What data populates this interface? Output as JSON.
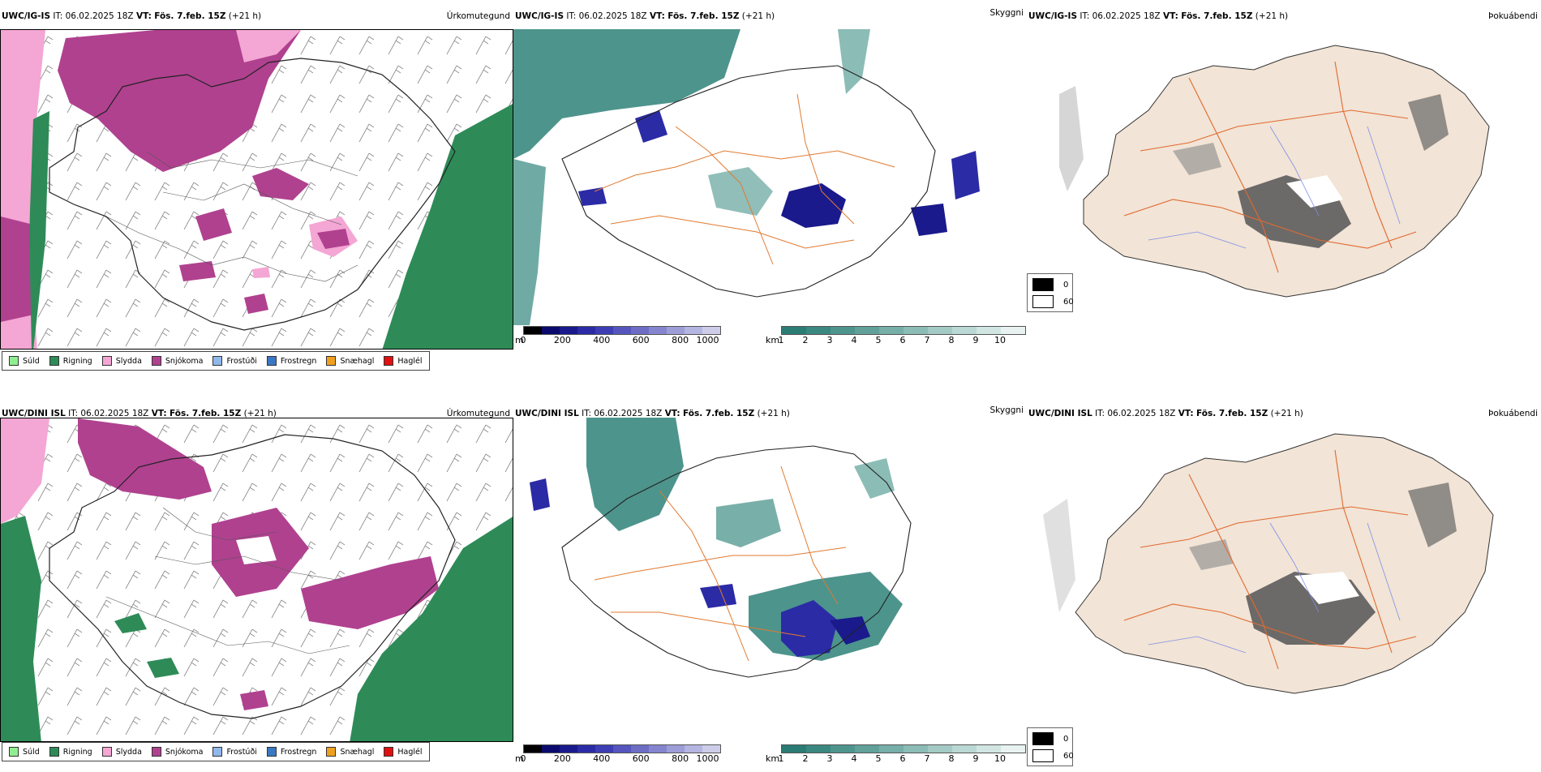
{
  "top": {
    "precip": {
      "model": "UWC/IG-IS",
      "it": "IT: 06.02.2025 18Z",
      "vt_label": "VT:",
      "vt": "Fös. 7.feb. 15Z",
      "lead": "(+21 h)",
      "title": "Úrkomutegund"
    },
    "vis": {
      "model": "UWC/IG-IS",
      "it": "IT: 06.02.2025 18Z",
      "vt_label": "VT:",
      "vt": "Fös. 7.feb. 15Z",
      "lead": "(+21 h)",
      "title": "Skyggni"
    },
    "fog": {
      "model": "UWC/IG-IS",
      "it": "IT: 06.02.2025 18Z",
      "vt_label": "VT:",
      "vt": "Fös. 7.feb. 15Z",
      "lead": "(+21 h)",
      "title": "Þokuábendi"
    }
  },
  "bottom": {
    "precip": {
      "model": "UWC/DINI ISL",
      "it": "IT: 06.02.2025 18Z",
      "vt_label": "VT:",
      "vt": "Fös. 7.feb. 15Z",
      "lead": "(+21 h)",
      "title": "Úrkomutegund"
    },
    "vis": {
      "model": "UWC/DINI ISL",
      "it": "IT: 06.02.2025 18Z",
      "vt_label": "VT:",
      "vt": "Fös. 7.feb. 15Z",
      "lead": "(+21 h)",
      "title": "Skyggni"
    },
    "fog": {
      "model": "UWC/DINI ISL",
      "it": "IT: 06.02.2025 18Z",
      "vt_label": "VT:",
      "vt": "Fös. 7.feb. 15Z",
      "lead": "(+21 h)",
      "title": "Þokuábendi"
    }
  },
  "precip_legend": [
    {
      "label": "Súld",
      "color": "#90ee90"
    },
    {
      "label": "Rigning",
      "color": "#2e8b57"
    },
    {
      "label": "Slydda",
      "color": "#f4a6d4"
    },
    {
      "label": "Snjókoma",
      "color": "#b0418f"
    },
    {
      "label": "Frostúði",
      "color": "#8fb8ec"
    },
    {
      "label": "Frostregn",
      "color": "#3a78c4"
    },
    {
      "label": "Snæhagl",
      "color": "#f0a020"
    },
    {
      "label": "Haglél",
      "color": "#e01010"
    }
  ],
  "ceiling_bar": {
    "unit": "m",
    "ticks": [
      "0",
      "200",
      "400",
      "600",
      "800",
      "1000"
    ],
    "colors": [
      "#000000",
      "#0a0a6e",
      "#1a1a8c",
      "#2b2ba6",
      "#3d3db4",
      "#5555bd",
      "#6d6dc6",
      "#8585cf",
      "#9d9dd8",
      "#b5b5e1",
      "#cdcdea"
    ]
  },
  "vis_bar": {
    "unit": "km",
    "ticks": [
      "1",
      "2",
      "3",
      "4",
      "5",
      "6",
      "7",
      "8",
      "9",
      "10"
    ],
    "colors": [
      "#2a7c74",
      "#3a8880",
      "#4d948d",
      "#61a19a",
      "#76aea8",
      "#8cbcb6",
      "#a3cac5",
      "#bad8d4",
      "#d1e6e3",
      "#e8f3f1"
    ]
  },
  "fog_legend": {
    "black_label": "0",
    "white_label": "60"
  },
  "colors": {
    "sea": "#ffffff",
    "land_fog": "#f2e4d6",
    "road": "#e06a30",
    "river": "#7f8fe8",
    "rain": "#2e8b57",
    "snow": "#b0418f",
    "sleet": "#f4a6d4",
    "teal": "#3a8880",
    "navy": "#1a1a8c"
  }
}
